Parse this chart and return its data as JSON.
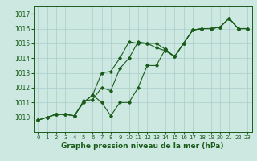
{
  "title": "Graphe pression niveau de la mer (hPa)",
  "bg_color": "#cce8e0",
  "grid_color": "#aacccc",
  "line_color": "#1a5c1a",
  "marker_color": "#1a5c1a",
  "xlim": [
    -0.5,
    23.5
  ],
  "ylim": [
    1009.0,
    1017.5
  ],
  "yticks": [
    1010,
    1011,
    1012,
    1013,
    1014,
    1015,
    1016,
    1017
  ],
  "xticks": [
    0,
    1,
    2,
    3,
    4,
    5,
    6,
    7,
    8,
    9,
    10,
    11,
    12,
    13,
    14,
    15,
    16,
    17,
    18,
    19,
    20,
    21,
    22,
    23
  ],
  "series": [
    [
      1009.8,
      1010.0,
      1010.2,
      1010.2,
      1010.1,
      1011.0,
      1011.5,
      1013.0,
      1013.1,
      1014.0,
      1015.1,
      1015.0,
      1015.0,
      1014.7,
      1014.5,
      1014.1,
      1015.0,
      1015.9,
      1016.0,
      1016.0,
      1016.1,
      1016.7,
      1016.0,
      1016.0
    ],
    [
      1009.8,
      1010.0,
      1010.2,
      1010.2,
      1010.1,
      1011.1,
      1011.2,
      1012.0,
      1011.8,
      1013.3,
      1014.0,
      1015.1,
      1015.0,
      1015.0,
      1014.6,
      1014.1,
      1015.0,
      1015.9,
      1016.0,
      1016.0,
      1016.1,
      1016.7,
      1016.0,
      1016.0
    ],
    [
      1009.8,
      1010.0,
      1010.2,
      1010.2,
      1010.1,
      1011.0,
      1011.5,
      1011.0,
      1010.1,
      1011.0,
      1011.0,
      1012.0,
      1013.5,
      1013.5,
      1014.6,
      1014.1,
      1015.0,
      1015.9,
      1016.0,
      1016.0,
      1016.1,
      1016.7,
      1016.0,
      1016.0
    ]
  ]
}
